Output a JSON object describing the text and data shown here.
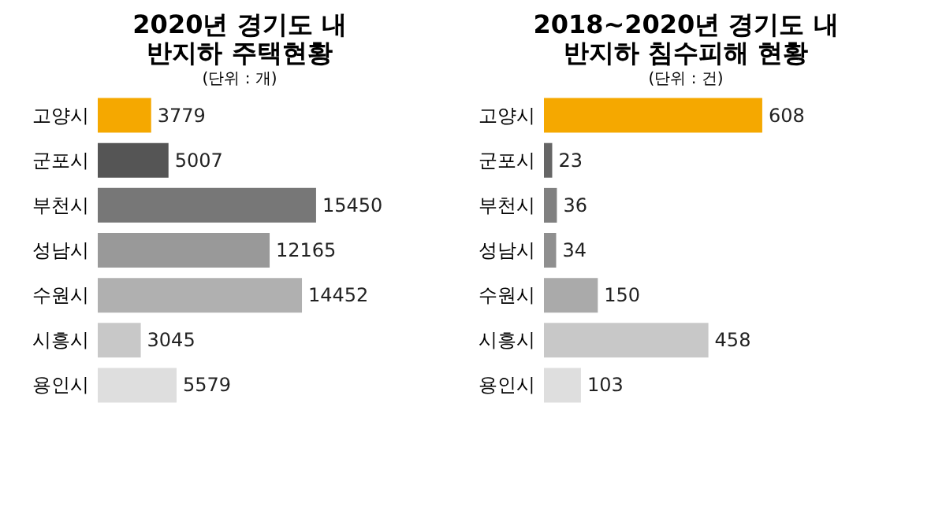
{
  "chart_data": [
    {
      "type": "bar",
      "orientation": "horizontal",
      "title": "2020년 경기도 내\n반지하 주택현황",
      "subtitle": "(단위 : 개)",
      "categories": [
        "고양시",
        "군포시",
        "부천시",
        "성남시",
        "수원시",
        "시흥시",
        "용인시"
      ],
      "values": [
        3779,
        5007,
        15450,
        12165,
        14452,
        3045,
        5579
      ],
      "colors": [
        "#f5a800",
        "#555555",
        "#777777",
        "#999999",
        "#b0b0b0",
        "#c8c8c8",
        "#dedede"
      ],
      "data_labels": true
    },
    {
      "type": "bar",
      "orientation": "horizontal",
      "title": "2018~2020년 경기도 내\n반지하 침수피해 현황",
      "subtitle": "(단위 : 건)",
      "categories": [
        "고양시",
        "군포시",
        "부천시",
        "성남시",
        "수원시",
        "시흥시",
        "용인시"
      ],
      "values": [
        608,
        23,
        36,
        34,
        150,
        458,
        103
      ],
      "colors": [
        "#f5a800",
        "#666666",
        "#808080",
        "#8f8f8f",
        "#aaaaaa",
        "#c8c8c8",
        "#dedede"
      ],
      "data_labels": true
    }
  ]
}
